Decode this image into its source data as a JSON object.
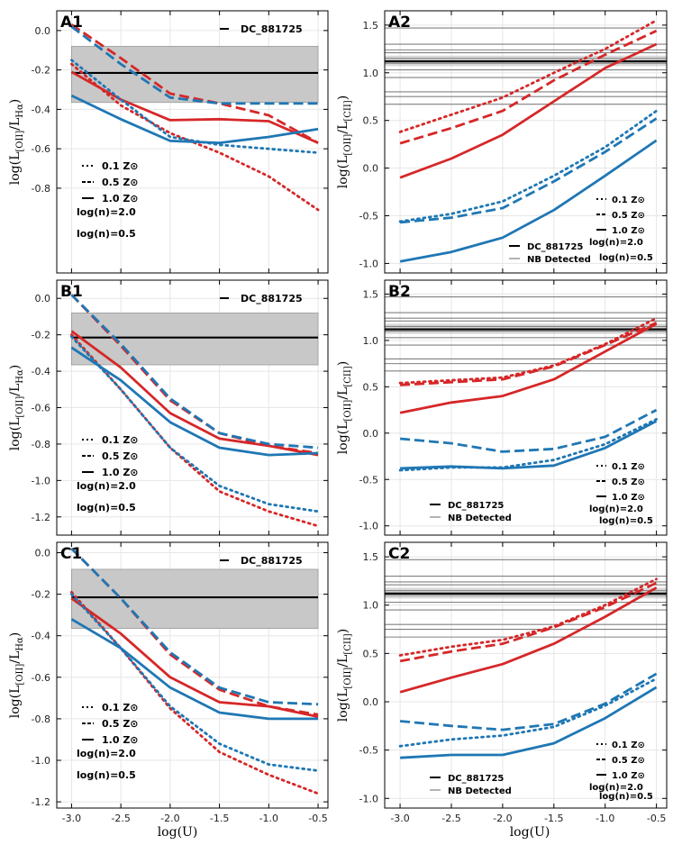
{
  "figure": {
    "x_title": "log(U)",
    "colors": {
      "high_density": "#d62728",
      "low_density": "#1f77b4",
      "observed": "#000000",
      "band": "#c8c8c8",
      "nb": "#808080"
    },
    "legend_labels": {
      "z01": "0.1 Z⊙",
      "z05": "0.5 Z⊙",
      "z10": "1.0 Z⊙",
      "n20": "log(n)=2.0",
      "n05": "log(n)=0.5",
      "obs": "DC_881725",
      "nb": "NB Detected"
    }
  },
  "chart_data": [
    {
      "panel": "A1",
      "type": "line",
      "ylabel_main": "log(L",
      "ylabel_sub1": "[OII]",
      "ylabel_mid": "/L",
      "ylabel_sub2": "Hα",
      "ylabel_end": ")",
      "xlim": [
        -3.15,
        -0.4
      ],
      "ylim": [
        -1.23,
        0.1
      ],
      "xticks": [
        "-3.0",
        "-2.5",
        "-2.0",
        "-1.5",
        "-1.0",
        "-0.5"
      ],
      "yticks": [
        "0.0",
        "-0.2",
        "-0.4",
        "-0.6",
        "-0.8"
      ],
      "x": [
        -3.0,
        -2.5,
        -2.0,
        -1.5,
        -1.0,
        -0.5
      ],
      "observed": {
        "value": -0.215,
        "band": [
          -0.365,
          -0.08
        ]
      },
      "series": [
        {
          "name": "log(n)=2.0, 0.1 Z⊙",
          "density": "2.0",
          "z": "0.1",
          "values": [
            -0.17,
            -0.38,
            -0.52,
            -0.62,
            -0.74,
            -0.91
          ]
        },
        {
          "name": "log(n)=2.0, 0.5 Z⊙",
          "density": "2.0",
          "z": "0.5",
          "values": [
            0.03,
            -0.14,
            -0.32,
            -0.37,
            -0.43,
            -0.57
          ]
        },
        {
          "name": "log(n)=2.0, 1.0 Z⊙",
          "density": "2.0",
          "z": "1.0",
          "values": [
            -0.21,
            -0.35,
            -0.455,
            -0.45,
            -0.46,
            -0.57
          ]
        },
        {
          "name": "log(n)=0.5, 0.1 Z⊙",
          "density": "0.5",
          "z": "0.1",
          "values": [
            -0.15,
            -0.35,
            -0.54,
            -0.58,
            -0.6,
            -0.62
          ]
        },
        {
          "name": "log(n)=0.5, 0.5 Z⊙",
          "density": "0.5",
          "z": "0.5",
          "values": [
            0.02,
            -0.17,
            -0.34,
            -0.37,
            -0.37,
            -0.37
          ]
        },
        {
          "name": "log(n)=0.5, 1.0 Z⊙",
          "density": "0.5",
          "z": "1.0",
          "values": [
            -0.33,
            -0.45,
            -0.56,
            -0.57,
            -0.54,
            -0.5
          ]
        }
      ]
    },
    {
      "panel": "A2",
      "type": "line",
      "ylabel_main": "log(L",
      "ylabel_sub1": "[OII]",
      "ylabel_mid": "/L",
      "ylabel_sub2": "[CII]",
      "ylabel_end": ")",
      "xlim": [
        -3.15,
        -0.4
      ],
      "ylim": [
        -1.1,
        1.65
      ],
      "xticks": [
        "-3.0",
        "-2.5",
        "-2.0",
        "-1.5",
        "-1.0",
        "-0.5"
      ],
      "yticks": [
        "1.5",
        "1.0",
        "0.5",
        "0.0",
        "-0.5",
        "-1.0"
      ],
      "x": [
        -3.0,
        -2.5,
        -2.0,
        -1.5,
        -1.0,
        -0.5
      ],
      "observed": {
        "value": 1.12,
        "band": [
          1.07,
          1.18
        ]
      },
      "nb_detected": [
        1.47,
        1.3,
        1.24,
        1.21,
        1.15,
        1.1,
        1.03,
        0.95,
        0.8,
        0.75,
        0.67
      ],
      "series": [
        {
          "name": "log(n)=2.0, 0.1 Z⊙",
          "density": "2.0",
          "z": "0.1",
          "values": [
            0.38,
            0.56,
            0.74,
            1.0,
            1.25,
            1.55
          ]
        },
        {
          "name": "log(n)=2.0, 0.5 Z⊙",
          "density": "2.0",
          "z": "0.5",
          "values": [
            0.26,
            0.42,
            0.6,
            0.92,
            1.19,
            1.44
          ]
        },
        {
          "name": "log(n)=2.0, 1.0 Z⊙",
          "density": "2.0",
          "z": "1.0",
          "values": [
            -0.1,
            0.1,
            0.35,
            0.7,
            1.05,
            1.3
          ]
        },
        {
          "name": "log(n)=0.5, 0.1 Z⊙",
          "density": "0.5",
          "z": "0.1",
          "values": [
            -0.56,
            -0.48,
            -0.35,
            -0.08,
            0.22,
            0.6
          ]
        },
        {
          "name": "log(n)=0.5, 0.5 Z⊙",
          "density": "0.5",
          "z": "0.5",
          "values": [
            -0.57,
            -0.52,
            -0.42,
            -0.14,
            0.17,
            0.52
          ]
        },
        {
          "name": "log(n)=0.5, 1.0 Z⊙",
          "density": "0.5",
          "z": "1.0",
          "values": [
            -0.98,
            -0.88,
            -0.73,
            -0.44,
            -0.08,
            0.29
          ]
        }
      ]
    },
    {
      "panel": "B1",
      "type": "line",
      "ylabel_main": "log(L",
      "ylabel_sub1": "[OII]",
      "ylabel_mid": "/L",
      "ylabel_sub2": "Hα",
      "ylabel_end": ")",
      "xlim": [
        -3.15,
        -0.4
      ],
      "ylim": [
        -1.3,
        0.1
      ],
      "xticks": [
        "-3.0",
        "-2.5",
        "-2.0",
        "-1.5",
        "-1.0",
        "-0.5"
      ],
      "yticks": [
        "0.0",
        "-0.2",
        "-0.4",
        "-0.6",
        "-0.8",
        "-1.0",
        "-1.2"
      ],
      "x": [
        -3.0,
        -2.5,
        -2.0,
        -1.5,
        -1.0,
        -0.5
      ],
      "observed": {
        "value": -0.215,
        "band": [
          -0.365,
          -0.08
        ]
      },
      "series": [
        {
          "name": "log(n)=2.0, 0.1 Z⊙",
          "density": "2.0",
          "z": "0.1",
          "values": [
            -0.2,
            -0.5,
            -0.82,
            -1.06,
            -1.17,
            -1.25
          ]
        },
        {
          "name": "log(n)=2.0, 0.5 Z⊙",
          "density": "2.0",
          "z": "0.5",
          "values": [
            0.02,
            -0.26,
            -0.56,
            -0.74,
            -0.81,
            -0.85
          ]
        },
        {
          "name": "log(n)=2.0, 1.0 Z⊙",
          "density": "2.0",
          "z": "1.0",
          "values": [
            -0.18,
            -0.38,
            -0.63,
            -0.77,
            -0.81,
            -0.86
          ]
        },
        {
          "name": "log(n)=0.5, 0.1 Z⊙",
          "density": "0.5",
          "z": "0.1",
          "values": [
            -0.21,
            -0.5,
            -0.82,
            -1.03,
            -1.13,
            -1.17
          ]
        },
        {
          "name": "log(n)=0.5, 0.5 Z⊙",
          "density": "0.5",
          "z": "0.5",
          "values": [
            0.02,
            -0.25,
            -0.55,
            -0.74,
            -0.8,
            -0.82
          ]
        },
        {
          "name": "log(n)=0.5, 1.0 Z⊙",
          "density": "0.5",
          "z": "1.0",
          "values": [
            -0.27,
            -0.45,
            -0.68,
            -0.82,
            -0.86,
            -0.85
          ]
        }
      ]
    },
    {
      "panel": "B2",
      "type": "line",
      "ylabel_main": "log(L",
      "ylabel_sub1": "[OII]",
      "ylabel_mid": "/L",
      "ylabel_sub2": "[CII]",
      "ylabel_end": ")",
      "xlim": [
        -3.15,
        -0.4
      ],
      "ylim": [
        -1.1,
        1.65
      ],
      "xticks": [
        "-3.0",
        "-2.5",
        "-2.0",
        "-1.5",
        "-1.0",
        "-0.5"
      ],
      "yticks": [
        "1.5",
        "1.0",
        "0.5",
        "0.0",
        "-0.5",
        "-1.0"
      ],
      "x": [
        -3.0,
        -2.5,
        -2.0,
        -1.5,
        -1.0,
        -0.5
      ],
      "observed": {
        "value": 1.12,
        "band": [
          1.07,
          1.18
        ]
      },
      "nb_detected": [
        1.47,
        1.3,
        1.24,
        1.21,
        1.15,
        1.1,
        1.03,
        0.95,
        0.8,
        0.75,
        0.67
      ],
      "series": [
        {
          "name": "log(n)=2.0, 0.1 Z⊙",
          "density": "2.0",
          "z": "0.1",
          "values": [
            0.54,
            0.57,
            0.6,
            0.73,
            0.96,
            1.24
          ]
        },
        {
          "name": "log(n)=2.0, 0.5 Z⊙",
          "density": "2.0",
          "z": "0.5",
          "values": [
            0.52,
            0.55,
            0.58,
            0.72,
            0.95,
            1.19
          ]
        },
        {
          "name": "log(n)=2.0, 1.0 Z⊙",
          "density": "2.0",
          "z": "1.0",
          "values": [
            0.22,
            0.33,
            0.4,
            0.58,
            0.88,
            1.18
          ]
        },
        {
          "name": "log(n)=0.5, 0.1 Z⊙",
          "density": "0.5",
          "z": "0.1",
          "values": [
            -0.4,
            -0.37,
            -0.37,
            -0.29,
            -0.12,
            0.15
          ]
        },
        {
          "name": "log(n)=0.5, 0.5 Z⊙",
          "density": "0.5",
          "z": "0.5",
          "values": [
            -0.06,
            -0.11,
            -0.2,
            -0.17,
            -0.04,
            0.25
          ]
        },
        {
          "name": "log(n)=0.5, 1.0 Z⊙",
          "density": "0.5",
          "z": "1.0",
          "values": [
            -0.38,
            -0.36,
            -0.38,
            -0.35,
            -0.16,
            0.13
          ]
        }
      ]
    },
    {
      "panel": "C1",
      "type": "line",
      "ylabel_main": "log(L",
      "ylabel_sub1": "[OII]",
      "ylabel_mid": "/L",
      "ylabel_sub2": "Hα",
      "ylabel_end": ")",
      "xlim": [
        -3.15,
        -0.4
      ],
      "ylim": [
        -1.23,
        0.05
      ],
      "xticks": [
        "-3.0",
        "-2.5",
        "-2.0",
        "-1.5",
        "-1.0",
        "-0.5"
      ],
      "yticks": [
        "0.0",
        "-0.2",
        "-0.4",
        "-0.6",
        "-0.8",
        "-1.0",
        "-1.2"
      ],
      "x": [
        -3.0,
        -2.5,
        -2.0,
        -1.5,
        -1.0,
        -0.5
      ],
      "observed": {
        "value": -0.215,
        "band": [
          -0.365,
          -0.08
        ]
      },
      "series": [
        {
          "name": "log(n)=2.0, 0.1 Z⊙",
          "density": "2.0",
          "z": "0.1",
          "values": [
            -0.19,
            -0.46,
            -0.75,
            -0.96,
            -1.07,
            -1.16
          ]
        },
        {
          "name": "log(n)=2.0, 0.5 Z⊙",
          "density": "2.0",
          "z": "0.5",
          "values": [
            0.02,
            -0.22,
            -0.49,
            -0.66,
            -0.74,
            -0.78
          ]
        },
        {
          "name": "log(n)=2.0, 1.0 Z⊙",
          "density": "2.0",
          "z": "1.0",
          "values": [
            -0.22,
            -0.39,
            -0.6,
            -0.72,
            -0.74,
            -0.79
          ]
        },
        {
          "name": "log(n)=0.5, 0.1 Z⊙",
          "density": "0.5",
          "z": "0.1",
          "values": [
            -0.2,
            -0.46,
            -0.74,
            -0.92,
            -1.02,
            -1.05
          ]
        },
        {
          "name": "log(n)=0.5, 0.5 Z⊙",
          "density": "0.5",
          "z": "0.5",
          "values": [
            0.02,
            -0.22,
            -0.48,
            -0.65,
            -0.72,
            -0.73
          ]
        },
        {
          "name": "log(n)=0.5, 1.0 Z⊙",
          "density": "0.5",
          "z": "1.0",
          "values": [
            -0.32,
            -0.46,
            -0.65,
            -0.77,
            -0.8,
            -0.8
          ]
        }
      ]
    },
    {
      "panel": "C2",
      "type": "line",
      "ylabel_main": "log(L",
      "ylabel_sub1": "[OII]",
      "ylabel_mid": "/L",
      "ylabel_sub2": "[CII]",
      "ylabel_end": ")",
      "xlim": [
        -3.15,
        -0.4
      ],
      "ylim": [
        -1.1,
        1.65
      ],
      "xticks": [
        "-3.0",
        "-2.5",
        "-2.0",
        "-1.5",
        "-1.0",
        "-0.5"
      ],
      "yticks": [
        "1.5",
        "1.0",
        "0.5",
        "0.0",
        "-0.5",
        "-1.0"
      ],
      "x": [
        -3.0,
        -2.5,
        -2.0,
        -1.5,
        -1.0,
        -0.5
      ],
      "observed": {
        "value": 1.12,
        "band": [
          1.07,
          1.18
        ]
      },
      "nb_detected": [
        1.47,
        1.3,
        1.24,
        1.21,
        1.15,
        1.1,
        1.03,
        0.95,
        0.8,
        0.75,
        0.67
      ],
      "series": [
        {
          "name": "log(n)=2.0, 0.1 Z⊙",
          "density": "2.0",
          "z": "0.1",
          "values": [
            0.48,
            0.57,
            0.64,
            0.78,
            1.0,
            1.27
          ]
        },
        {
          "name": "log(n)=2.0, 0.5 Z⊙",
          "density": "2.0",
          "z": "0.5",
          "values": [
            0.42,
            0.52,
            0.6,
            0.77,
            0.98,
            1.23
          ]
        },
        {
          "name": "log(n)=2.0, 1.0 Z⊙",
          "density": "2.0",
          "z": "1.0",
          "values": [
            0.1,
            0.25,
            0.39,
            0.6,
            0.88,
            1.18
          ]
        },
        {
          "name": "log(n)=0.5, 0.1 Z⊙",
          "density": "0.5",
          "z": "0.1",
          "values": [
            -0.46,
            -0.39,
            -0.35,
            -0.26,
            -0.04,
            0.24
          ]
        },
        {
          "name": "log(n)=0.5, 0.5 Z⊙",
          "density": "0.5",
          "z": "0.5",
          "values": [
            -0.2,
            -0.25,
            -0.29,
            -0.23,
            -0.02,
            0.29
          ]
        },
        {
          "name": "log(n)=0.5, 1.0 Z⊙",
          "density": "0.5",
          "z": "1.0",
          "values": [
            -0.58,
            -0.55,
            -0.55,
            -0.43,
            -0.17,
            0.15
          ]
        }
      ]
    }
  ]
}
